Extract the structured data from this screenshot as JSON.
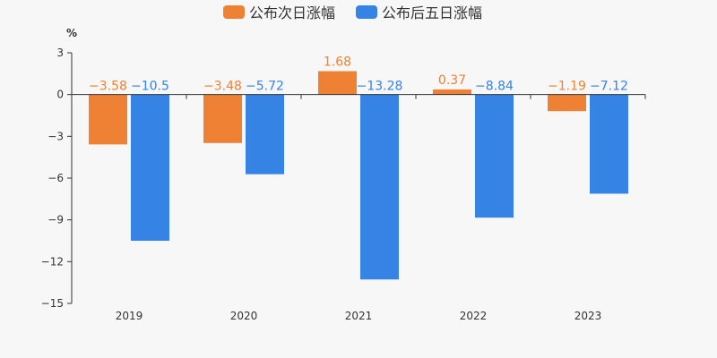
{
  "chart_data": {
    "type": "bar",
    "unit": "%",
    "categories": [
      "2019",
      "2020",
      "2021",
      "2022",
      "2023"
    ],
    "series": [
      {
        "name": "公布次日涨幅",
        "color": "#ee8133",
        "values": [
          -3.58,
          -3.48,
          1.68,
          0.37,
          -1.19
        ],
        "labels": [
          "−3.58",
          "−3.48",
          "1.68",
          "0.37",
          "−1.19"
        ]
      },
      {
        "name": "公布后五日涨幅",
        "color": "#3583e4",
        "values": [
          -10.5,
          -5.72,
          -13.28,
          -8.84,
          -7.12
        ],
        "labels": [
          "−10.5",
          "−5.72",
          "−13.28",
          "−8.84",
          "−7.12"
        ]
      }
    ],
    "ylim": [
      -15,
      3
    ],
    "yticks": [
      3,
      0,
      -3,
      -6,
      -9,
      -12,
      -15
    ],
    "ytick_labels": [
      "3",
      "0",
      "−3",
      "−6",
      "−9",
      "−12",
      "−15"
    ],
    "legend_position": "top-center"
  }
}
